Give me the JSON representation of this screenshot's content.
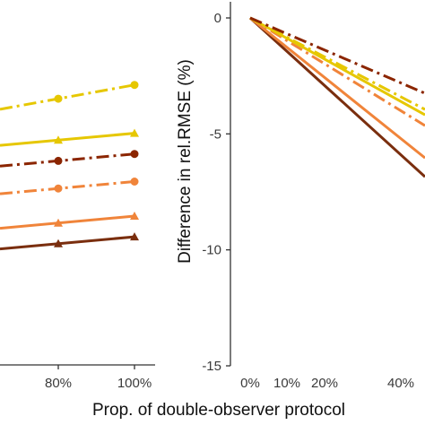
{
  "colors": {
    "yellow": "#E6C700",
    "orange": "#F0843A",
    "darkred": "#8B2500",
    "brown": "#7A2E0E",
    "axis": "#333333"
  },
  "xlabel": "Prop. of double-observer protocol",
  "chart_data": [
    {
      "type": "line",
      "panel": "left",
      "x": [
        "80%",
        "100%"
      ],
      "x_visible_ticks": [
        "80%",
        "100%"
      ],
      "series": [
        {
          "marker": "circle",
          "line": "dashdot",
          "color": "#E6C700",
          "values": [
            0.26,
            0.22
          ]
        },
        {
          "marker": "circle",
          "line": "dashdot",
          "color": "#F0843A",
          "values": [
            0.52,
            0.5
          ]
        },
        {
          "marker": "triangle",
          "line": "solid",
          "color": "#E6C700",
          "values": [
            0.38,
            0.36
          ]
        },
        {
          "marker": "circle",
          "line": "dashdot",
          "color": "#8B2500",
          "values": [
            0.44,
            0.42
          ]
        },
        {
          "marker": "triangle",
          "line": "solid",
          "color": "#F0843A",
          "values": [
            0.62,
            0.6
          ]
        },
        {
          "marker": "triangle",
          "line": "solid",
          "color": "#7A2E0E",
          "values": [
            0.68,
            0.66
          ]
        }
      ],
      "grid": false
    },
    {
      "type": "line",
      "panel": "right",
      "ylabel": "Difference in rel.RMSE (%)",
      "yticks": [
        "0",
        "-5",
        "-10",
        "-15"
      ],
      "ylim": [
        -15,
        1
      ],
      "xticks": [
        "0%",
        "10%",
        "20%",
        "40%"
      ],
      "x": [
        0,
        40
      ],
      "series": [
        {
          "line": "solid",
          "color": "#7A2E0E",
          "values": [
            0,
            -5.9
          ]
        },
        {
          "line": "solid",
          "color": "#F0843A",
          "values": [
            0,
            -5.2
          ]
        },
        {
          "line": "dashdot",
          "color": "#F0843A",
          "values": [
            0,
            -4.0
          ]
        },
        {
          "line": "solid",
          "color": "#E6C700",
          "values": [
            0,
            -3.6
          ]
        },
        {
          "line": "dashdot",
          "color": "#E6C700",
          "values": [
            0,
            -3.4
          ]
        },
        {
          "line": "dashdot",
          "color": "#8B2500",
          "values": [
            0,
            -2.8
          ]
        }
      ],
      "grid": false
    }
  ]
}
